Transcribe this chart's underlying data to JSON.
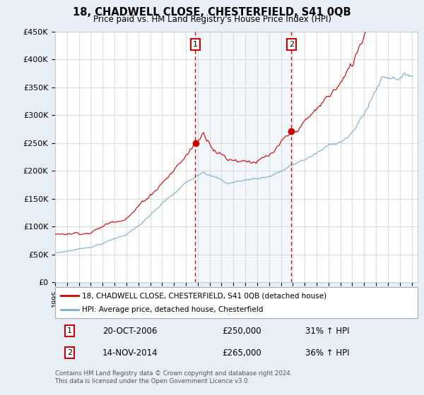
{
  "title": "18, CHADWELL CLOSE, CHESTERFIELD, S41 0QB",
  "subtitle": "Price paid vs. HM Land Registry's House Price Index (HPI)",
  "x_start_year": 1995,
  "x_end_year": 2025,
  "y_min": 0,
  "y_max": 450000,
  "y_ticks": [
    0,
    50000,
    100000,
    150000,
    200000,
    250000,
    300000,
    350000,
    400000,
    450000
  ],
  "y_tick_labels": [
    "£0",
    "£50K",
    "£100K",
    "£150K",
    "£200K",
    "£250K",
    "£300K",
    "£350K",
    "£400K",
    "£450K"
  ],
  "purchase1_date": 2006.8,
  "purchase1_price": 250000,
  "purchase1_label": "1",
  "purchase1_info": "20-OCT-2006",
  "purchase1_amount": "£250,000",
  "purchase1_hpi": "31% ↑ HPI",
  "purchase2_date": 2014.87,
  "purchase2_price": 265000,
  "purchase2_label": "2",
  "purchase2_info": "14-NOV-2014",
  "purchase2_amount": "£265,000",
  "purchase2_hpi": "36% ↑ HPI",
  "hpi_color": "#7aadd4",
  "hpi_shade_color": "#dde8f5",
  "price_color": "#cc0000",
  "background_color": "#e8eef5",
  "plot_bg_color": "#ffffff",
  "legend_label_price": "18, CHADWELL CLOSE, CHESTERFIELD, S41 0QB (detached house)",
  "legend_label_hpi": "HPI: Average price, detached house, Chesterfield",
  "footnote": "Contains HM Land Registry data © Crown copyright and database right 2024.\nThis data is licensed under the Open Government Licence v3.0."
}
